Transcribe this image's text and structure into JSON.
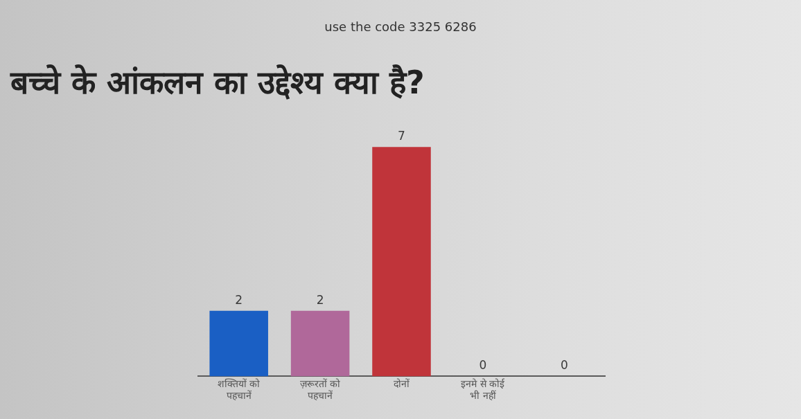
{
  "chart_data": {
    "type": "bar",
    "title": "बच्चे के आंकलन का उद्देश्य क्या है?",
    "subtitle": "use the code 3325 6286",
    "categories": [
      "शक्तियों को पहचानें",
      "ज़रूरतों को पहचानें",
      "दोनों",
      "इनमे से कोई भी नहीं",
      null
    ],
    "values": [
      2,
      2,
      7,
      0,
      0
    ],
    "colors": [
      "#1a5fc4",
      "#b0689a",
      "#c0343a",
      "#808080",
      "#808080"
    ],
    "data_labels": true,
    "tick_labels": "x"
  }
}
